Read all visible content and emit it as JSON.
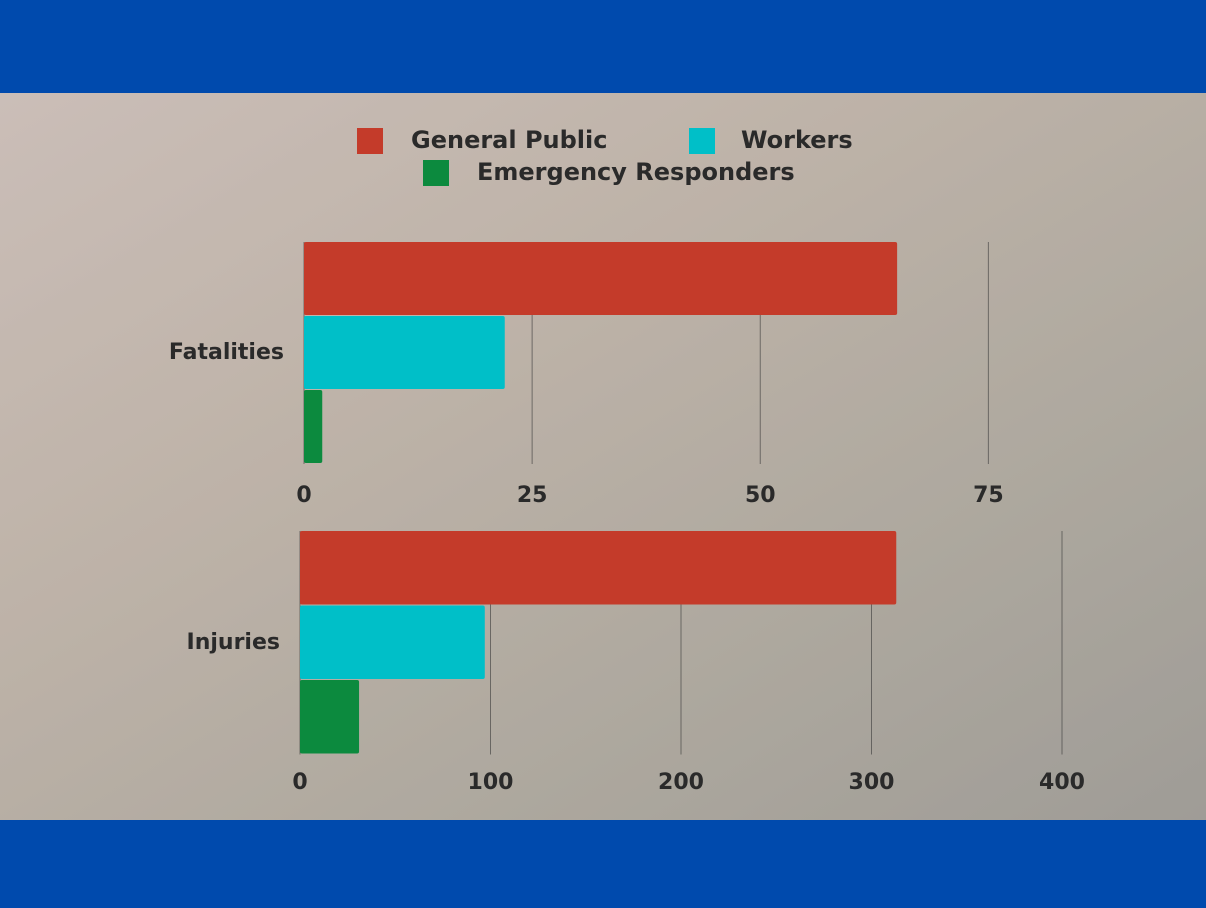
{
  "chart_data": [
    {
      "type": "bar",
      "orientation": "horizontal",
      "categories": [
        "Fatalities"
      ],
      "series": [
        {
          "name": "General Public",
          "color": "#c43b2a",
          "values": [
            65
          ]
        },
        {
          "name": "Workers",
          "color": "#00bfc8",
          "values": [
            22
          ]
        },
        {
          "name": "Emergency Responders",
          "color": "#0c8a3e",
          "values": [
            2
          ]
        }
      ],
      "xlim": [
        0,
        80
      ],
      "xticks": [
        0,
        25,
        50,
        75
      ],
      "grid": true
    },
    {
      "type": "bar",
      "orientation": "horizontal",
      "categories": [
        "Injuries"
      ],
      "series": [
        {
          "name": "General Public",
          "color": "#c43b2a",
          "values": [
            313
          ]
        },
        {
          "name": "Workers",
          "color": "#00bfc8",
          "values": [
            97
          ]
        },
        {
          "name": "Emergency Responders",
          "color": "#0c8a3e",
          "values": [
            31
          ]
        }
      ],
      "xlim": [
        0,
        400
      ],
      "xticks": [
        0,
        100,
        200,
        300,
        400
      ],
      "grid": true
    }
  ]
}
